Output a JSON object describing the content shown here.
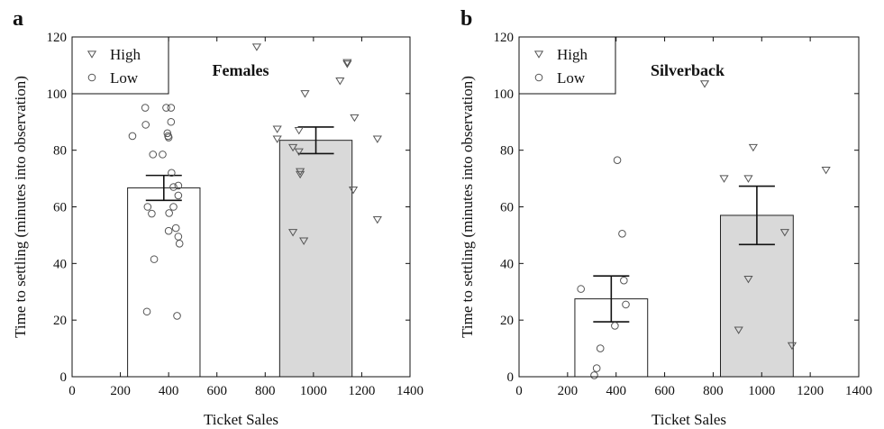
{
  "chart_data": [
    {
      "type": "bar",
      "panel_label": "a",
      "title": "Females",
      "xlabel": "Ticket Sales",
      "ylabel": "Time to settling (minutes into observation)",
      "xlim": [
        0,
        1400
      ],
      "ylim": [
        0,
        120
      ],
      "xticks": [
        0,
        200,
        400,
        600,
        800,
        1000,
        1200,
        1400
      ],
      "yticks": [
        0,
        20,
        40,
        60,
        80,
        100,
        120
      ],
      "legend": {
        "position": "top-left",
        "entries": [
          {
            "label": "High",
            "marker": "triangle-down"
          },
          {
            "label": "Low",
            "marker": "circle"
          }
        ]
      },
      "bars": [
        {
          "group": "Low",
          "x_start": 230,
          "x_end": 530,
          "value": 66.7,
          "err_low": 62.3,
          "err_high": 71.1,
          "fill": "#ffffff"
        },
        {
          "group": "High",
          "x_start": 860,
          "x_end": 1160,
          "value": 83.5,
          "err_low": 78.8,
          "err_high": 88.2,
          "fill": "#d9d9d9"
        }
      ],
      "series": [
        {
          "name": "Low",
          "marker": "circle",
          "points": [
            [
              250,
              85
            ],
            [
              305,
              89
            ],
            [
              303,
              95
            ],
            [
              310,
              23
            ],
            [
              313,
              60
            ],
            [
              330,
              57.6
            ],
            [
              335,
              78.5
            ],
            [
              340,
              41.5
            ],
            [
              375,
              78.5
            ],
            [
              390,
              95
            ],
            [
              395,
              86
            ],
            [
              398,
              85
            ],
            [
              400,
              84.5
            ],
            [
              400,
              51.5
            ],
            [
              402,
              57.8
            ],
            [
              410,
              95
            ],
            [
              410,
              90
            ],
            [
              412,
              72
            ],
            [
              420,
              67
            ],
            [
              420,
              60
            ],
            [
              430,
              52.5
            ],
            [
              435,
              21.5
            ],
            [
              440,
              64
            ],
            [
              440,
              67.5
            ],
            [
              440,
              49.5
            ],
            [
              445,
              47
            ]
          ]
        },
        {
          "name": "High",
          "marker": "triangle",
          "points": [
            [
              765,
              116.5
            ],
            [
              850,
              87.5
            ],
            [
              850,
              84
            ],
            [
              915,
              81
            ],
            [
              915,
              51
            ],
            [
              940,
              79.5
            ],
            [
              940,
              87
            ],
            [
              945,
              72.5
            ],
            [
              945,
              71.5
            ],
            [
              960,
              48
            ],
            [
              965,
              100
            ],
            [
              1110,
              104.5
            ],
            [
              1140,
              111
            ],
            [
              1140,
              110.5
            ],
            [
              1165,
              66
            ],
            [
              1170,
              91.5
            ],
            [
              1265,
              84
            ],
            [
              1265,
              55.5
            ]
          ]
        }
      ]
    },
    {
      "type": "bar",
      "panel_label": "b",
      "title": "Silverback",
      "xlabel": "Ticket Sales",
      "ylabel": "Time to settling (minutes into observation)",
      "xlim": [
        0,
        1400
      ],
      "ylim": [
        0,
        120
      ],
      "xticks": [
        0,
        200,
        400,
        600,
        800,
        1000,
        1200,
        1400
      ],
      "yticks": [
        0,
        20,
        40,
        60,
        80,
        100,
        120
      ],
      "legend": {
        "position": "top-left",
        "entries": [
          {
            "label": "High",
            "marker": "triangle-down"
          },
          {
            "label": "Low",
            "marker": "circle"
          }
        ]
      },
      "bars": [
        {
          "group": "Low",
          "x_start": 230,
          "x_end": 530,
          "value": 27.5,
          "err_low": 19.4,
          "err_high": 35.6,
          "fill": "#ffffff"
        },
        {
          "group": "High",
          "x_start": 830,
          "x_end": 1130,
          "value": 57,
          "err_low": 46.7,
          "err_high": 67.3,
          "fill": "#d9d9d9"
        }
      ],
      "series": [
        {
          "name": "Low",
          "marker": "circle",
          "points": [
            [
              255,
              31
            ],
            [
              310,
              0.5
            ],
            [
              320,
              3
            ],
            [
              335,
              10
            ],
            [
              395,
              18
            ],
            [
              405,
              76.5
            ],
            [
              425,
              50.5
            ],
            [
              432,
              34
            ],
            [
              440,
              25.5
            ]
          ]
        },
        {
          "name": "High",
          "marker": "triangle",
          "points": [
            [
              765,
              103.5
            ],
            [
              845,
              70
            ],
            [
              905,
              16.5
            ],
            [
              945,
              70
            ],
            [
              945,
              34.5
            ],
            [
              965,
              81
            ],
            [
              1095,
              51
            ],
            [
              1125,
              11
            ],
            [
              1265,
              73
            ]
          ]
        }
      ]
    }
  ]
}
